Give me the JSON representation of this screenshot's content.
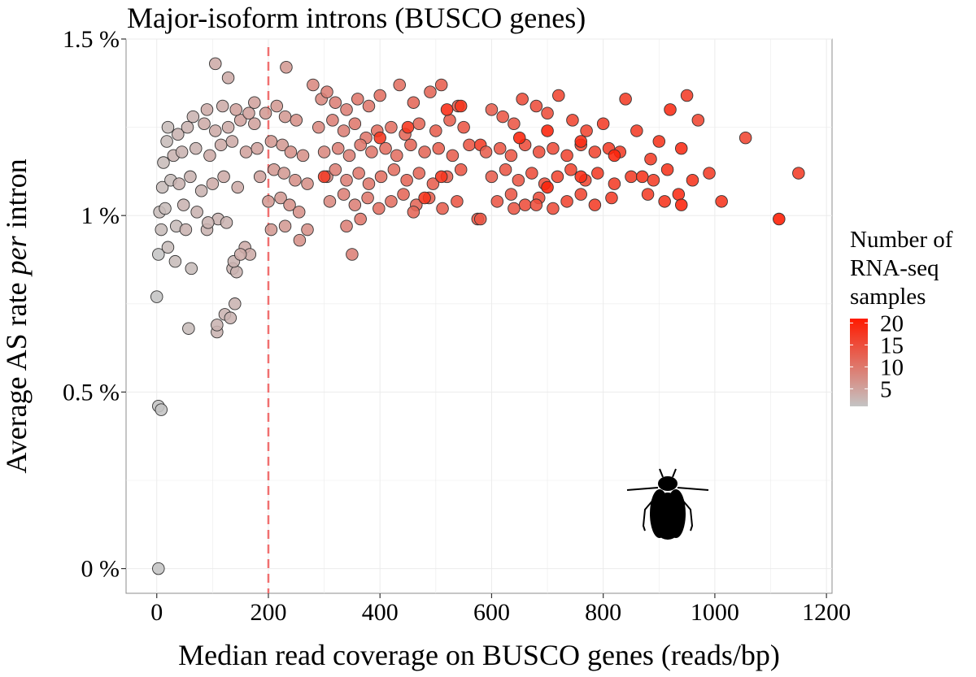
{
  "colors": {
    "low": "#c4c4c4",
    "high": "#ff1a00",
    "threshold_line": "#f07070",
    "point_stroke": "#333333",
    "grid": "#ebebeb",
    "panel_border": "#8c8c8c"
  },
  "icon": "fly-silhouette-icon",
  "chart_data": {
    "type": "scatter",
    "title": "Major-isoform introns (BUSCO genes)",
    "xlabel": "Median read coverage on BUSCO genes (reads/bp)",
    "ylabel": {
      "pre": "Average AS rate ",
      "italic": "per",
      "post": " intron"
    },
    "xlim": [
      -55,
      1210
    ],
    "ylim": [
      -0.0007,
      0.015
    ],
    "xticks": [
      {
        "value": 0,
        "label": "0"
      },
      {
        "value": 200,
        "label": "200"
      },
      {
        "value": 400,
        "label": "400"
      },
      {
        "value": 600,
        "label": "600"
      },
      {
        "value": 800,
        "label": "800"
      },
      {
        "value": 1000,
        "label": "1000"
      },
      {
        "value": 1200,
        "label": "1200"
      }
    ],
    "yticks": [
      {
        "value": 0,
        "label": "0 %"
      },
      {
        "value": 0.005,
        "label": "0.5 %"
      },
      {
        "value": 0.01,
        "label": "1 %"
      },
      {
        "value": 0.015,
        "label": "1.5 %"
      }
    ],
    "threshold_x": 200,
    "grid": true,
    "legend": {
      "title_lines": [
        "Number of",
        "RNA-seq",
        "samples"
      ],
      "ticks": [
        {
          "value": 5,
          "label": "5"
        },
        {
          "value": 10,
          "label": "10"
        },
        {
          "value": 15,
          "label": "15"
        },
        {
          "value": 20,
          "label": "20"
        }
      ],
      "range": [
        1,
        21
      ],
      "placement": "right"
    },
    "points": [
      [
        3,
        0.0,
        1
      ],
      [
        3,
        0.0046,
        1
      ],
      [
        8,
        0.0045,
        1
      ],
      [
        0,
        0.0077,
        1
      ],
      [
        57,
        0.0068,
        2
      ],
      [
        108,
        0.0067,
        3
      ],
      [
        108,
        0.0069,
        3
      ],
      [
        122,
        0.0072,
        3
      ],
      [
        132,
        0.0071,
        3
      ],
      [
        140,
        0.0075,
        3
      ],
      [
        3,
        0.0089,
        1
      ],
      [
        20,
        0.0091,
        2
      ],
      [
        33,
        0.0087,
        2
      ],
      [
        62,
        0.0085,
        2
      ],
      [
        90,
        0.0096,
        3
      ],
      [
        136,
        0.0085,
        3
      ],
      [
        143,
        0.0084,
        3
      ],
      [
        158,
        0.0091,
        4
      ],
      [
        167,
        0.0089,
        4
      ],
      [
        8,
        0.0096,
        2
      ],
      [
        35,
        0.0097,
        2
      ],
      [
        52,
        0.0096,
        3
      ],
      [
        110,
        0.0099,
        3
      ],
      [
        125,
        0.0098,
        3
      ],
      [
        5,
        0.0101,
        2
      ],
      [
        15,
        0.0102,
        2
      ],
      [
        48,
        0.0103,
        3
      ],
      [
        72,
        0.0101,
        3
      ],
      [
        92,
        0.0098,
        3
      ],
      [
        138,
        0.0087,
        3
      ],
      [
        150,
        0.0089,
        4
      ],
      [
        10,
        0.0108,
        2
      ],
      [
        25,
        0.011,
        2
      ],
      [
        40,
        0.0109,
        3
      ],
      [
        60,
        0.0111,
        3
      ],
      [
        80,
        0.0107,
        3
      ],
      [
        100,
        0.0109,
        4
      ],
      [
        120,
        0.0111,
        4
      ],
      [
        145,
        0.0108,
        4
      ],
      [
        12,
        0.0115,
        2
      ],
      [
        30,
        0.0117,
        3
      ],
      [
        45,
        0.0118,
        3
      ],
      [
        70,
        0.0119,
        3
      ],
      [
        95,
        0.0117,
        4
      ],
      [
        115,
        0.012,
        4
      ],
      [
        135,
        0.0121,
        4
      ],
      [
        160,
        0.0118,
        5
      ],
      [
        18,
        0.0121,
        2
      ],
      [
        38,
        0.0123,
        3
      ],
      [
        55,
        0.0125,
        3
      ],
      [
        85,
        0.0126,
        4
      ],
      [
        105,
        0.0124,
        4
      ],
      [
        128,
        0.0125,
        4
      ],
      [
        150,
        0.0127,
        5
      ],
      [
        175,
        0.0126,
        5
      ],
      [
        20,
        0.0125,
        2
      ],
      [
        65,
        0.0128,
        3
      ],
      [
        90,
        0.013,
        4
      ],
      [
        118,
        0.0131,
        4
      ],
      [
        142,
        0.013,
        5
      ],
      [
        165,
        0.0129,
        5
      ],
      [
        105,
        0.0143,
        4
      ],
      [
        128,
        0.0139,
        4
      ],
      [
        232,
        0.0142,
        6
      ],
      [
        175,
        0.0132,
        5
      ],
      [
        195,
        0.0129,
        6
      ],
      [
        215,
        0.0131,
        6
      ],
      [
        230,
        0.0128,
        6
      ],
      [
        250,
        0.0127,
        7
      ],
      [
        180,
        0.0119,
        5
      ],
      [
        205,
        0.0121,
        6
      ],
      [
        225,
        0.012,
        6
      ],
      [
        240,
        0.0118,
        7
      ],
      [
        262,
        0.0117,
        7
      ],
      [
        185,
        0.0111,
        5
      ],
      [
        210,
        0.0113,
        6
      ],
      [
        228,
        0.0112,
        6
      ],
      [
        248,
        0.011,
        7
      ],
      [
        270,
        0.0109,
        7
      ],
      [
        200,
        0.0104,
        6
      ],
      [
        222,
        0.0105,
        6
      ],
      [
        238,
        0.0103,
        7
      ],
      [
        255,
        0.0101,
        7
      ],
      [
        205,
        0.0096,
        6
      ],
      [
        230,
        0.0097,
        6
      ],
      [
        256,
        0.0093,
        7
      ],
      [
        270,
        0.0096,
        7
      ],
      [
        280,
        0.0137,
        8
      ],
      [
        295,
        0.0133,
        8
      ],
      [
        305,
        0.0135,
        9
      ],
      [
        320,
        0.0132,
        9
      ],
      [
        340,
        0.013,
        9
      ],
      [
        360,
        0.0133,
        10
      ],
      [
        380,
        0.0131,
        10
      ],
      [
        400,
        0.0134,
        11
      ],
      [
        435,
        0.0137,
        11
      ],
      [
        460,
        0.0132,
        12
      ],
      [
        490,
        0.0135,
        12
      ],
      [
        510,
        0.0137,
        13
      ],
      [
        540,
        0.0131,
        13
      ],
      [
        290,
        0.0125,
        8
      ],
      [
        315,
        0.0127,
        9
      ],
      [
        335,
        0.0124,
        9
      ],
      [
        355,
        0.0126,
        10
      ],
      [
        375,
        0.0122,
        10
      ],
      [
        395,
        0.0124,
        11
      ],
      [
        420,
        0.0125,
        11
      ],
      [
        445,
        0.0123,
        12
      ],
      [
        470,
        0.0126,
        12
      ],
      [
        500,
        0.0124,
        13
      ],
      [
        525,
        0.0127,
        13
      ],
      [
        550,
        0.0125,
        14
      ],
      [
        300,
        0.0118,
        8
      ],
      [
        325,
        0.0119,
        9
      ],
      [
        345,
        0.0117,
        9
      ],
      [
        365,
        0.012,
        10
      ],
      [
        385,
        0.0118,
        10
      ],
      [
        410,
        0.0119,
        11
      ],
      [
        430,
        0.0117,
        11
      ],
      [
        455,
        0.012,
        12
      ],
      [
        480,
        0.0118,
        12
      ],
      [
        505,
        0.0119,
        13
      ],
      [
        530,
        0.0117,
        13
      ],
      [
        560,
        0.012,
        14
      ],
      [
        305,
        0.0111,
        8
      ],
      [
        320,
        0.0113,
        9
      ],
      [
        340,
        0.011,
        9
      ],
      [
        362,
        0.0112,
        10
      ],
      [
        380,
        0.0109,
        10
      ],
      [
        402,
        0.0111,
        11
      ],
      [
        425,
        0.0113,
        11
      ],
      [
        448,
        0.011,
        12
      ],
      [
        470,
        0.0112,
        12
      ],
      [
        495,
        0.0109,
        13
      ],
      [
        520,
        0.0111,
        13
      ],
      [
        545,
        0.0113,
        14
      ],
      [
        310,
        0.0104,
        8
      ],
      [
        335,
        0.0106,
        9
      ],
      [
        355,
        0.0103,
        9
      ],
      [
        378,
        0.0105,
        10
      ],
      [
        398,
        0.0102,
        11
      ],
      [
        420,
        0.0104,
        11
      ],
      [
        442,
        0.0106,
        12
      ],
      [
        465,
        0.0103,
        12
      ],
      [
        488,
        0.0105,
        13
      ],
      [
        512,
        0.0102,
        13
      ],
      [
        538,
        0.0104,
        14
      ],
      [
        340,
        0.0097,
        9
      ],
      [
        350,
        0.0089,
        9
      ],
      [
        365,
        0.0099,
        10
      ],
      [
        460,
        0.0101,
        12
      ],
      [
        575,
        0.0099,
        14
      ],
      [
        300,
        0.0111,
        17
      ],
      [
        400,
        0.0122,
        18
      ],
      [
        450,
        0.0125,
        18
      ],
      [
        480,
        0.0105,
        18
      ],
      [
        510,
        0.0111,
        18
      ],
      [
        520,
        0.013,
        19
      ],
      [
        545,
        0.0131,
        18
      ],
      [
        580,
        0.012,
        17
      ],
      [
        600,
        0.013,
        13
      ],
      [
        620,
        0.0128,
        14
      ],
      [
        640,
        0.0126,
        14
      ],
      [
        655,
        0.0133,
        15
      ],
      [
        680,
        0.0131,
        15
      ],
      [
        700,
        0.0129,
        15
      ],
      [
        720,
        0.0134,
        16
      ],
      [
        745,
        0.0127,
        16
      ],
      [
        770,
        0.0124,
        16
      ],
      [
        800,
        0.0126,
        17
      ],
      [
        840,
        0.0133,
        17
      ],
      [
        590,
        0.0118,
        13
      ],
      [
        615,
        0.0119,
        14
      ],
      [
        635,
        0.0117,
        14
      ],
      [
        660,
        0.012,
        15
      ],
      [
        685,
        0.0118,
        15
      ],
      [
        710,
        0.0119,
        15
      ],
      [
        735,
        0.0117,
        16
      ],
      [
        760,
        0.012,
        16
      ],
      [
        785,
        0.0118,
        16
      ],
      [
        810,
        0.0119,
        17
      ],
      [
        830,
        0.0118,
        17
      ],
      [
        600,
        0.0111,
        13
      ],
      [
        625,
        0.0113,
        14
      ],
      [
        648,
        0.011,
        14
      ],
      [
        672,
        0.0112,
        15
      ],
      [
        695,
        0.0109,
        15
      ],
      [
        718,
        0.0111,
        16
      ],
      [
        742,
        0.0113,
        16
      ],
      [
        768,
        0.011,
        16
      ],
      [
        790,
        0.0112,
        17
      ],
      [
        820,
        0.0109,
        17
      ],
      [
        850,
        0.0111,
        17
      ],
      [
        610,
        0.0104,
        14
      ],
      [
        635,
        0.0106,
        14
      ],
      [
        660,
        0.0103,
        15
      ],
      [
        685,
        0.0105,
        15
      ],
      [
        710,
        0.0102,
        15
      ],
      [
        735,
        0.0104,
        16
      ],
      [
        760,
        0.0106,
        16
      ],
      [
        785,
        0.0103,
        17
      ],
      [
        815,
        0.0105,
        17
      ],
      [
        580,
        0.0099,
        14
      ],
      [
        640,
        0.0102,
        14
      ],
      [
        680,
        0.0103,
        15
      ],
      [
        650,
        0.0122,
        20
      ],
      [
        700,
        0.0124,
        20
      ],
      [
        760,
        0.0121,
        19
      ],
      [
        820,
        0.0117,
        20
      ],
      [
        760,
        0.0111,
        19
      ],
      [
        700,
        0.0108,
        20
      ],
      [
        870,
        0.0111,
        18
      ],
      [
        900,
        0.0121,
        18
      ],
      [
        920,
        0.013,
        19
      ],
      [
        950,
        0.0134,
        17
      ],
      [
        970,
        0.0127,
        16
      ],
      [
        885,
        0.0116,
        17
      ],
      [
        915,
        0.0113,
        18
      ],
      [
        940,
        0.0119,
        19
      ],
      [
        880,
        0.0106,
        17
      ],
      [
        910,
        0.0104,
        18
      ],
      [
        935,
        0.0106,
        19
      ],
      [
        940,
        0.0103,
        20
      ],
      [
        990,
        0.0112,
        17
      ],
      [
        1012,
        0.0104,
        18
      ],
      [
        1055,
        0.0122,
        16
      ],
      [
        1115,
        0.0099,
        21
      ],
      [
        1150,
        0.0112,
        17
      ],
      [
        890,
        0.011,
        17
      ],
      [
        960,
        0.011,
        18
      ],
      [
        860,
        0.0124,
        17
      ]
    ]
  }
}
